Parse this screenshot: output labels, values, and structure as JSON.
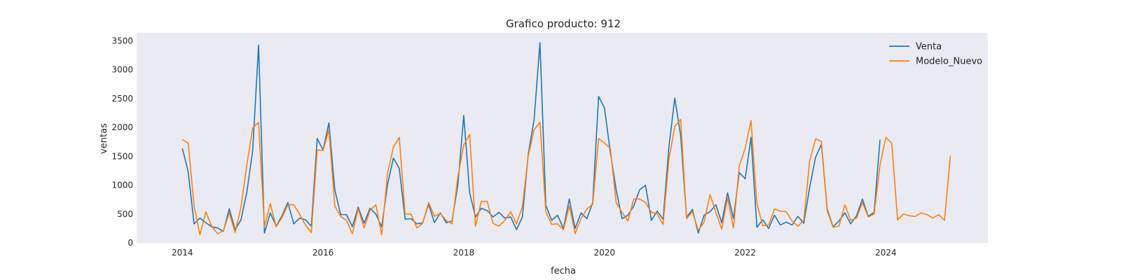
{
  "chart_data": {
    "type": "line",
    "title": "Grafico producto: 912",
    "xlabel": "fecha",
    "ylabel": "ventas",
    "xlim": [
      2013.35,
      2025.45
    ],
    "ylim": [
      0,
      3640
    ],
    "x_ticks": [
      2014,
      2016,
      2018,
      2020,
      2022,
      2024
    ],
    "y_ticks": [
      0,
      500,
      1000,
      1500,
      2000,
      2500,
      3000,
      3500
    ],
    "grid": false,
    "legend_position": "top-right",
    "x_start": 2014.0,
    "x_step_months": 1,
    "colors": {
      "Venta": "#1f77b4",
      "Modelo_Nuevo": "#ff7f0e",
      "background": "#eaeaf2"
    },
    "series": [
      {
        "name": "Venta",
        "values": [
          1640,
          1230,
          330,
          430,
          350,
          280,
          260,
          200,
          590,
          230,
          400,
          880,
          1600,
          3430,
          170,
          520,
          290,
          470,
          700,
          330,
          430,
          400,
          290,
          1810,
          1610,
          2080,
          920,
          490,
          490,
          280,
          620,
          340,
          600,
          500,
          280,
          1010,
          1470,
          1290,
          410,
          420,
          330,
          350,
          670,
          350,
          520,
          350,
          380,
          1010,
          2210,
          870,
          450,
          600,
          560,
          450,
          530,
          430,
          450,
          230,
          450,
          1540,
          2140,
          3470,
          650,
          390,
          480,
          250,
          760,
          250,
          520,
          420,
          700,
          2540,
          2340,
          1570,
          920,
          420,
          480,
          640,
          920,
          1000,
          390,
          550,
          410,
          1670,
          2510,
          1860,
          440,
          580,
          170,
          480,
          540,
          660,
          350,
          870,
          420,
          1220,
          1110,
          1830,
          270,
          400,
          250,
          480,
          310,
          360,
          310,
          460,
          340,
          960,
          1480,
          1710,
          580,
          280,
          380,
          520,
          330,
          470,
          760,
          460,
          530,
          1790
        ]
      },
      {
        "name": "Modelo_Nuevo",
        "values": [
          1790,
          1730,
          640,
          140,
          540,
          290,
          160,
          210,
          520,
          180,
          620,
          1350,
          1990,
          2090,
          280,
          680,
          280,
          440,
          660,
          660,
          500,
          310,
          180,
          1610,
          1600,
          1960,
          640,
          460,
          390,
          160,
          590,
          260,
          560,
          660,
          140,
          1200,
          1660,
          1830,
          500,
          500,
          260,
          340,
          700,
          460,
          510,
          390,
          330,
          1150,
          1700,
          1880,
          290,
          720,
          720,
          340,
          290,
          390,
          540,
          330,
          630,
          1510,
          1960,
          2090,
          540,
          320,
          330,
          230,
          640,
          160,
          420,
          590,
          670,
          1810,
          1730,
          1640,
          700,
          530,
          380,
          760,
          760,
          700,
          530,
          500,
          320,
          1450,
          2020,
          2140,
          420,
          540,
          220,
          360,
          840,
          530,
          240,
          780,
          260,
          1340,
          1640,
          2120,
          680,
          300,
          310,
          590,
          550,
          540,
          380,
          290,
          390,
          1420,
          1800,
          1760,
          550,
          270,
          290,
          660,
          390,
          430,
          700,
          450,
          500,
          1350,
          1830,
          1730,
          400,
          500,
          470,
          460,
          520,
          490,
          430,
          490,
          390,
          1510
        ]
      }
    ]
  }
}
